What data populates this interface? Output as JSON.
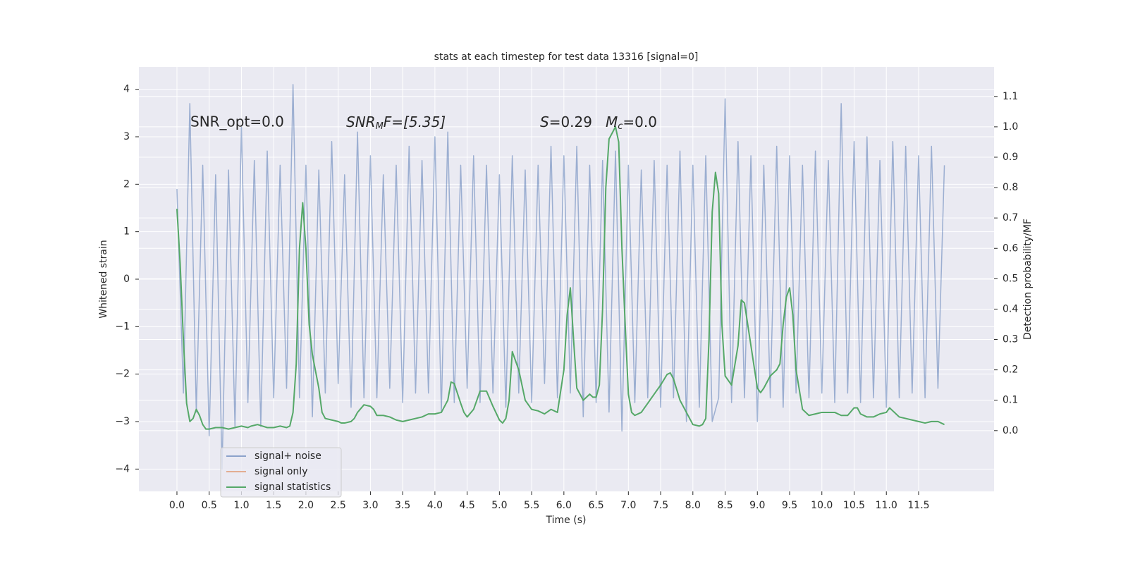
{
  "chart_data": {
    "type": "line",
    "title": "stats at each timestep for test data 13316 [signal=0]",
    "xlabel": "Time (s)",
    "ylabel": "Whitened strain",
    "y2label": "Detection probability/MF",
    "annotations": [
      {
        "main": "SNR_opt=0.0"
      },
      {
        "main": "SNR",
        "sub": "M",
        "rest": "F=[5.35]"
      },
      {
        "main": "S",
        "rest": "=0.29"
      },
      {
        "main": "M",
        "sub": "c",
        "rest": "=0.0"
      }
    ],
    "xlim": [
      -0.59,
      12.67
    ],
    "ylim": [
      -4.47,
      4.47
    ],
    "y2lim": [
      -0.2,
      1.197
    ],
    "xticks": [
      {
        "value": 0,
        "label": "0.0"
      },
      0.5,
      {
        "value": 1,
        "label": "1.0"
      },
      1.5,
      {
        "value": 2,
        "label": "2.0"
      },
      2.5,
      {
        "value": 3,
        "label": "3.0"
      },
      3.5,
      {
        "value": 4,
        "label": "4.0"
      },
      4.5,
      {
        "value": 5,
        "label": "5.0"
      },
      5.5,
      {
        "value": 6,
        "label": "6.0"
      },
      6.5,
      {
        "value": 7,
        "label": "7.0"
      },
      7.5,
      {
        "value": 8,
        "label": "8.0"
      },
      8.5,
      {
        "value": 9,
        "label": "9.0"
      },
      9.5,
      {
        "value": 10,
        "label": "10.0"
      },
      10.5,
      {
        "value": 11,
        "label": "11.0"
      },
      11.5
    ],
    "yticks": [
      {
        "value": -4,
        "label": "−4"
      },
      {
        "value": -3,
        "label": "−3"
      },
      {
        "value": -2,
        "label": "−2"
      },
      {
        "value": -1,
        "label": "−1"
      },
      0,
      1,
      2,
      3,
      4
    ],
    "y2ticks": [
      {
        "value": 0,
        "label": "0.0"
      },
      0.1,
      0.2,
      0.3,
      0.4,
      0.5,
      0.6,
      0.7,
      0.8,
      0.9,
      {
        "value": 1,
        "label": "1.0"
      },
      1.1
    ],
    "grid": true,
    "legend_loc": "lower left",
    "series": [
      {
        "name": "signal+ noise",
        "color": "#4c72b0",
        "axis": "y",
        "x": [
          0,
          0.1,
          0.2,
          0.3,
          0.4,
          0.5,
          0.6,
          0.7,
          0.8,
          0.9,
          1,
          1.1,
          1.2,
          1.3,
          1.4,
          1.5,
          1.6,
          1.7,
          1.8,
          1.9,
          2,
          2.1,
          2.2,
          2.3,
          2.4,
          2.5,
          2.6,
          2.7,
          2.8,
          2.9,
          3,
          3.1,
          3.2,
          3.3,
          3.4,
          3.5,
          3.6,
          3.7,
          3.8,
          3.9,
          4,
          4.1,
          4.2,
          4.3,
          4.4,
          4.5,
          4.6,
          4.7,
          4.8,
          4.9,
          5,
          5.1,
          5.2,
          5.3,
          5.4,
          5.5,
          5.6,
          5.7,
          5.8,
          5.9,
          6,
          6.1,
          6.2,
          6.3,
          6.4,
          6.5,
          6.6,
          6.7,
          6.8,
          6.9,
          7,
          7.1,
          7.2,
          7.3,
          7.4,
          7.5,
          7.6,
          7.7,
          7.8,
          7.9,
          8,
          8.1,
          8.2,
          8.3,
          8.4,
          8.5,
          8.6,
          8.7,
          8.8,
          8.9,
          9,
          9.1,
          9.2,
          9.3,
          9.4,
          9.5,
          9.6,
          9.7,
          9.8,
          9.9,
          10,
          10.1,
          10.2,
          10.3,
          10.4,
          10.5,
          10.6,
          10.7,
          10.8,
          10.9,
          11,
          11.1,
          11.2,
          11.3,
          11.4,
          11.5,
          11.6,
          11.7,
          11.8,
          11.9
        ],
        "values": [
          1.9,
          -2.4,
          3.7,
          -2.8,
          2.4,
          -3.3,
          2.2,
          -4.0,
          2.3,
          -3.1,
          3.2,
          -2.6,
          2.5,
          -3.1,
          2.7,
          -2.5,
          2.4,
          -2.3,
          4.1,
          -2.5,
          2.4,
          -2.9,
          2.3,
          -2.4,
          2.9,
          -2.2,
          2.2,
          -2.7,
          3.1,
          -2.5,
          2.6,
          -2.5,
          2.2,
          -2.3,
          2.4,
          -2.6,
          2.8,
          -2.4,
          2.5,
          -2.4,
          3.0,
          -2.8,
          3.1,
          -2.6,
          2.4,
          -2.3,
          2.6,
          -2.6,
          2.4,
          -2.4,
          2.2,
          -2.7,
          2.6,
          -2.4,
          2.3,
          -2.6,
          2.4,
          -2.2,
          2.8,
          -2.5,
          2.6,
          -2.4,
          2.8,
          -2.9,
          2.4,
          -2.6,
          2.5,
          -2.8,
          2.7,
          -3.2,
          2.4,
          -2.6,
          2.3,
          -2.5,
          2.5,
          -2.7,
          2.4,
          -2.5,
          2.7,
          -3.0,
          2.4,
          -2.7,
          2.6,
          -3.0,
          -2.5,
          3.8,
          -2.6,
          2.9,
          -2.5,
          2.6,
          -3.0,
          2.4,
          -2.5,
          2.8,
          -2.7,
          2.6,
          -2.4,
          2.4,
          -2.5,
          2.7,
          -2.4,
          2.5,
          -2.6,
          3.7,
          -2.4,
          2.9,
          -2.6,
          3.0,
          -2.5,
          2.5,
          -2.7,
          2.9,
          -2.5,
          2.8,
          -2.4,
          2.6,
          -2.5,
          2.8,
          -2.3,
          2.4
        ]
      },
      {
        "name": "signal only",
        "color": "#dd8452",
        "axis": "y",
        "x": [],
        "values": []
      },
      {
        "name": "signal statistics",
        "color": "#55a868",
        "axis": "y2",
        "x": [
          0,
          0.05,
          0.1,
          0.15,
          0.2,
          0.25,
          0.3,
          0.35,
          0.4,
          0.45,
          0.5,
          0.6,
          0.7,
          0.8,
          0.9,
          1,
          1.1,
          1.15,
          1.25,
          1.4,
          1.5,
          1.6,
          1.7,
          1.75,
          1.8,
          1.85,
          1.9,
          1.95,
          2,
          2.05,
          2.1,
          2.2,
          2.25,
          2.3,
          2.4,
          2.5,
          2.55,
          2.6,
          2.7,
          2.75,
          2.8,
          2.9,
          3,
          3.05,
          3.1,
          3.2,
          3.3,
          3.4,
          3.5,
          3.6,
          3.7,
          3.8,
          3.9,
          4,
          4.1,
          4.2,
          4.25,
          4.3,
          4.4,
          4.45,
          4.5,
          4.6,
          4.7,
          4.8,
          4.9,
          5,
          5.05,
          5.1,
          5.15,
          5.2,
          5.3,
          5.4,
          5.5,
          5.6,
          5.7,
          5.8,
          5.9,
          6,
          6.05,
          6.1,
          6.15,
          6.2,
          6.3,
          6.4,
          6.45,
          6.5,
          6.55,
          6.6,
          6.65,
          6.7,
          6.8,
          6.85,
          6.9,
          6.95,
          7,
          7.05,
          7.1,
          7.2,
          7.3,
          7.4,
          7.5,
          7.6,
          7.65,
          7.7,
          7.8,
          7.9,
          8,
          8.1,
          8.15,
          8.2,
          8.25,
          8.3,
          8.35,
          8.4,
          8.45,
          8.5,
          8.6,
          8.7,
          8.75,
          8.8,
          8.9,
          9,
          9.05,
          9.1,
          9.2,
          9.3,
          9.35,
          9.4,
          9.45,
          9.5,
          9.55,
          9.6,
          9.7,
          9.8,
          9.9,
          10,
          10.1,
          10.2,
          10.3,
          10.4,
          10.5,
          10.55,
          10.6,
          10.7,
          10.8,
          10.9,
          11,
          11.05,
          11.1,
          11.2,
          11.3,
          11.4,
          11.5,
          11.6,
          11.7,
          11.8,
          11.9
        ],
        "values": [
          0.73,
          0.55,
          0.3,
          0.09,
          0.03,
          0.04,
          0.07,
          0.05,
          0.02,
          0.005,
          0.005,
          0.01,
          0.01,
          0.005,
          0.01,
          0.015,
          0.01,
          0.015,
          0.02,
          0.01,
          0.01,
          0.015,
          0.01,
          0.015,
          0.06,
          0.22,
          0.6,
          0.75,
          0.6,
          0.35,
          0.25,
          0.14,
          0.06,
          0.04,
          0.035,
          0.03,
          0.025,
          0.025,
          0.03,
          0.04,
          0.06,
          0.085,
          0.08,
          0.07,
          0.05,
          0.05,
          0.045,
          0.035,
          0.03,
          0.035,
          0.04,
          0.045,
          0.055,
          0.055,
          0.06,
          0.1,
          0.16,
          0.155,
          0.09,
          0.06,
          0.045,
          0.07,
          0.13,
          0.13,
          0.08,
          0.035,
          0.025,
          0.04,
          0.1,
          0.26,
          0.2,
          0.1,
          0.07,
          0.065,
          0.055,
          0.07,
          0.06,
          0.2,
          0.38,
          0.47,
          0.3,
          0.14,
          0.1,
          0.12,
          0.11,
          0.11,
          0.15,
          0.4,
          0.8,
          0.96,
          1.0,
          0.95,
          0.6,
          0.35,
          0.12,
          0.06,
          0.05,
          0.06,
          0.09,
          0.12,
          0.15,
          0.185,
          0.19,
          0.17,
          0.1,
          0.06,
          0.02,
          0.015,
          0.02,
          0.04,
          0.3,
          0.72,
          0.85,
          0.78,
          0.35,
          0.18,
          0.15,
          0.28,
          0.43,
          0.42,
          0.28,
          0.14,
          0.125,
          0.14,
          0.18,
          0.2,
          0.22,
          0.35,
          0.44,
          0.47,
          0.38,
          0.2,
          0.07,
          0.05,
          0.055,
          0.06,
          0.06,
          0.06,
          0.05,
          0.05,
          0.075,
          0.075,
          0.055,
          0.045,
          0.045,
          0.055,
          0.06,
          0.075,
          0.065,
          0.045,
          0.04,
          0.035,
          0.03,
          0.025,
          0.03,
          0.03,
          0.02
        ]
      }
    ]
  }
}
